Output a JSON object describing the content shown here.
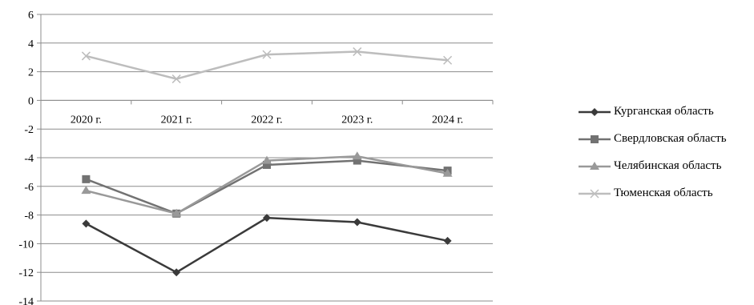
{
  "chart_data": {
    "type": "line",
    "title": "",
    "xlabel": "",
    "ylabel": "",
    "categories": [
      "2020 г.",
      "2021 г.",
      "2022 г.",
      "2023 г.",
      "2024 г."
    ],
    "ylim": [
      -14,
      6
    ],
    "yticks": [
      6,
      4,
      2,
      0,
      -2,
      -4,
      -6,
      -8,
      -10,
      -12,
      -14
    ],
    "grid": true,
    "legend_position": "right",
    "series": [
      {
        "name": "Курганская область",
        "values": [
          -8.6,
          -12.0,
          -8.2,
          -8.5,
          -9.8
        ],
        "color": "#3a3a3a",
        "marker": "diamond"
      },
      {
        "name": "Свердловская область",
        "values": [
          -5.5,
          -7.9,
          -4.5,
          -4.2,
          -4.9
        ],
        "color": "#727272",
        "marker": "square"
      },
      {
        "name": "Челябинская область",
        "values": [
          -6.3,
          -7.9,
          -4.2,
          -3.9,
          -5.1
        ],
        "color": "#999999",
        "marker": "triangle"
      },
      {
        "name": "Тюменская область",
        "values": [
          3.1,
          1.5,
          3.2,
          3.4,
          2.8
        ],
        "color": "#bdbdbd",
        "marker": "x"
      }
    ]
  }
}
